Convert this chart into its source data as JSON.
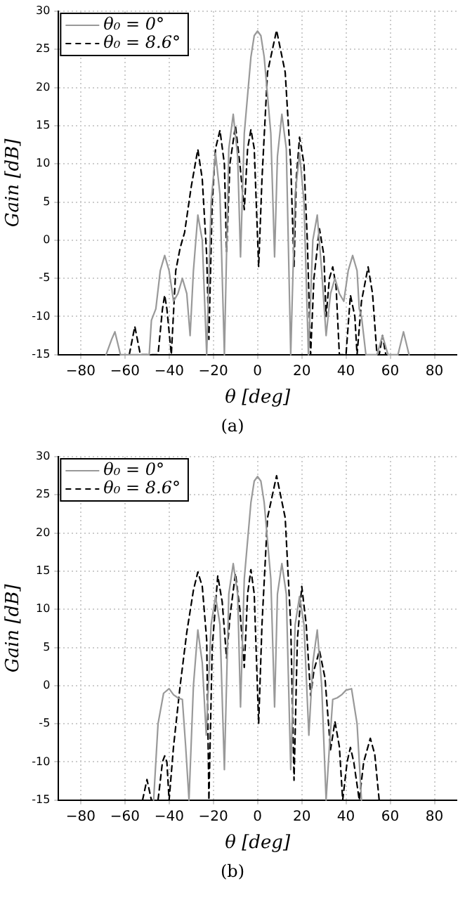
{
  "chart_data": [
    {
      "type": "line",
      "xlabel": "θ [deg]",
      "ylabel": "Gain [dB]",
      "xlim": [
        -90,
        90
      ],
      "xticks": [
        -80,
        -60,
        -40,
        -20,
        0,
        20,
        40,
        60,
        80
      ],
      "ylim": [
        -15,
        30
      ],
      "yticks": [
        -15,
        -10,
        -5,
        0,
        5,
        10,
        15,
        20,
        25,
        30
      ],
      "grid": true,
      "legend": "top left",
      "annotations": [
        "(a)"
      ],
      "series": [
        {
          "name": "θ₀ = 0°",
          "color": "#999999",
          "line_style": "solid",
          "x": [
            -68.5,
            -66,
            -64.5,
            -62,
            -49,
            -48,
            -46,
            -44,
            -42,
            -40,
            -38,
            -36,
            -34,
            -32,
            -30.5,
            -29,
            -27,
            -25,
            -23,
            -21,
            -19,
            -17,
            -15,
            -13,
            -11,
            -9,
            -7.7,
            -6,
            -3,
            -1.5,
            0,
            1.5,
            3,
            6,
            7.7,
            9,
            11,
            13,
            15,
            17,
            19,
            21,
            23,
            25,
            27,
            29,
            31,
            33,
            35,
            37,
            39,
            41,
            43,
            45,
            46,
            47,
            49,
            54,
            56.5,
            59,
            63.5,
            66,
            68.5
          ],
          "values": [
            -15,
            -13,
            -12,
            -15,
            -15,
            -10.5,
            -9,
            -4,
            -2,
            -4,
            -8,
            -7,
            -5,
            -7,
            -12.5,
            -4,
            3.3,
            0,
            -15,
            5,
            11.4,
            6,
            -15,
            12,
            16.5,
            11,
            -2.2,
            14,
            24,
            26.8,
            27.4,
            26.8,
            24,
            14,
            -2.2,
            11,
            16.5,
            12,
            -15,
            6,
            11.4,
            5,
            -15,
            0,
            3.3,
            -4,
            -12.5,
            -7,
            -5,
            -7,
            -8,
            -4,
            -2,
            -4,
            -9,
            -10,
            -15,
            -15,
            -12.5,
            -15,
            -15,
            -12,
            -15
          ]
        },
        {
          "name": "θ₀ = 8.6°",
          "color": "#000000",
          "line_style": "dashed",
          "x": [
            -58,
            -55.5,
            -53,
            -45,
            -43,
            -42,
            -41,
            -39,
            -37,
            -35,
            -33,
            -30,
            -27,
            -25,
            -23,
            -22,
            -20.5,
            -19,
            -17,
            -15,
            -14,
            -12.5,
            -10,
            -8,
            -6,
            -4.5,
            -3,
            -1.5,
            0.5,
            2,
            4.5,
            8.6,
            12.5,
            15,
            16.5,
            17.5,
            19,
            21,
            22.5,
            24,
            25.5,
            28,
            30,
            31,
            32.5,
            34,
            35.5,
            37,
            40,
            42,
            44,
            45,
            47,
            50,
            52,
            54,
            55,
            56.5,
            58
          ],
          "values": [
            -15,
            -11.3,
            -15,
            -15,
            -9,
            -7.2,
            -9,
            -15,
            -4,
            -1,
            1,
            7,
            11.9,
            8,
            -2,
            -13,
            5,
            12,
            14.4,
            10,
            -1.5,
            10,
            15,
            10,
            4,
            12,
            14.5,
            12,
            -3.5,
            8,
            22,
            27.5,
            22,
            10,
            -3.5,
            8,
            13.5,
            10,
            0,
            -15,
            -5,
            1.5,
            -2,
            -10,
            -5,
            -3.5,
            -6,
            -15,
            -15,
            -7.2,
            -10,
            -15,
            -8,
            -3.5,
            -7,
            -15,
            -15,
            -12.5,
            -15
          ]
        }
      ]
    },
    {
      "type": "line",
      "xlabel": "θ [deg]",
      "ylabel": "Gain [dB]",
      "xlim": [
        -90,
        90
      ],
      "xticks": [
        -80,
        -60,
        -40,
        -20,
        0,
        20,
        40,
        60,
        80
      ],
      "ylim": [
        -15,
        30
      ],
      "yticks": [
        -15,
        -10,
        -5,
        0,
        5,
        10,
        15,
        20,
        25,
        30
      ],
      "grid": true,
      "legend": "top left",
      "annotations": [
        "(b)"
      ],
      "series": [
        {
          "name": "θ₀ = 0°",
          "color": "#999999",
          "line_style": "solid",
          "x": [
            -47,
            -45,
            -42.5,
            -40,
            -38,
            -36,
            -34,
            -32.5,
            -31,
            -29,
            -27,
            -25,
            -23.2,
            -21,
            -19,
            -17,
            -15,
            -13,
            -11,
            -9,
            -7.7,
            -6,
            -3,
            -1.5,
            0,
            1.5,
            3,
            6,
            7.7,
            9,
            11,
            13,
            15,
            17,
            19,
            21,
            23.2,
            25,
            27,
            29,
            31,
            32.5,
            34,
            36,
            38,
            40,
            42.5,
            45,
            47
          ],
          "values": [
            -15,
            -5,
            -1,
            -0.4,
            -1.2,
            -1.6,
            -1.8,
            -8,
            -15,
            0,
            7.3,
            3,
            -6.5,
            8,
            11.7,
            8,
            -11,
            12,
            16,
            12,
            -2.8,
            14,
            24,
            26.8,
            27.4,
            26.8,
            24,
            14,
            -2.8,
            12,
            16,
            12,
            -11,
            8,
            11.7,
            8,
            -6.5,
            3,
            7.3,
            0,
            -15,
            -8,
            -1.8,
            -1.6,
            -1.2,
            -0.6,
            -0.4,
            -5,
            -15
          ]
        },
        {
          "name": "θ₀ = 8.6°",
          "color": "#000000",
          "line_style": "dashed",
          "x": [
            -52,
            -50,
            -48,
            -45,
            -43,
            -42,
            -41,
            -40,
            -38,
            -35,
            -32,
            -29,
            -27,
            -25,
            -23,
            -22,
            -20.5,
            -18,
            -16,
            -14,
            -12.5,
            -10,
            -8,
            -6,
            -4.5,
            -3,
            -1.5,
            0.5,
            2,
            4.5,
            8.6,
            12.5,
            15,
            16.5,
            18,
            20,
            22,
            24,
            25.5,
            28,
            30.5,
            33,
            35,
            37,
            38.5,
            40.5,
            42,
            43.5,
            46,
            48,
            51,
            53,
            55
          ],
          "values": [
            -15,
            -12.3,
            -15,
            -15,
            -10,
            -9.2,
            -10,
            -15,
            -8,
            0,
            7,
            12.5,
            14.9,
            13,
            6,
            -15,
            5,
            14.4,
            11,
            3.6,
            9,
            14.7,
            10,
            2.4,
            12,
            15.2,
            12,
            -5,
            8,
            22,
            27.5,
            22,
            8,
            -12.4,
            6,
            13,
            8,
            -1.3,
            2,
            4.6,
            1,
            -8.4,
            -4.7,
            -8,
            -15,
            -10,
            -8.1,
            -10,
            -15,
            -10,
            -6.9,
            -9,
            -15
          ]
        }
      ]
    }
  ]
}
